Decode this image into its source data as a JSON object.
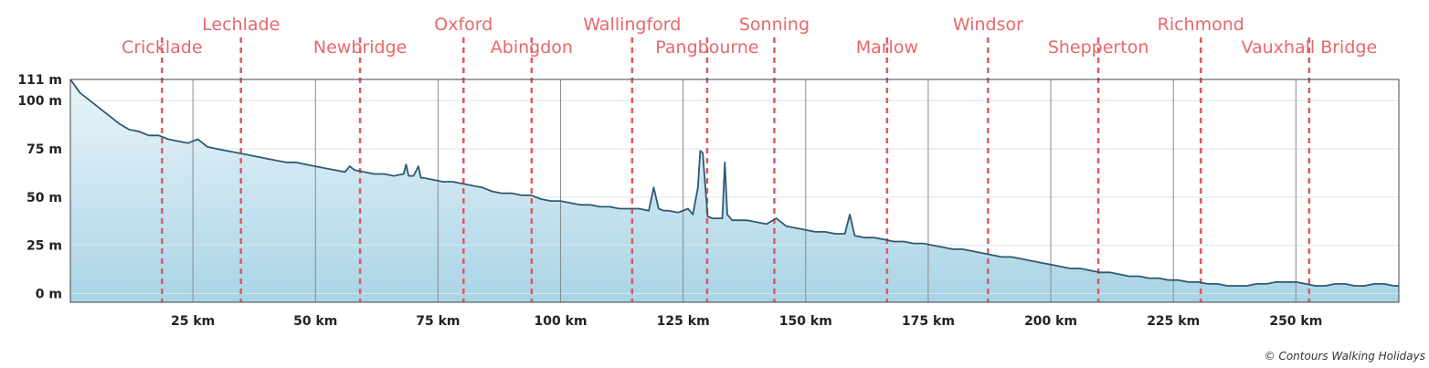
{
  "chart_data": {
    "type": "area",
    "title": "",
    "xlabel": "",
    "ylabel": "",
    "xlim": [
      0,
      271
    ],
    "ylim": [
      -4.5,
      111
    ],
    "grid": true,
    "x_ticks": [
      25,
      50,
      75,
      100,
      125,
      150,
      175,
      200,
      225,
      250
    ],
    "x_tick_labels": [
      "25 km",
      "50 km",
      "75 km",
      "100 km",
      "125 km",
      "150 km",
      "175 km",
      "200 km",
      "225 km",
      "250 km"
    ],
    "y_ticks": [
      0,
      25,
      50,
      75,
      100,
      111
    ],
    "y_tick_labels": [
      "0 m",
      "25 m",
      "50 m",
      "75 m",
      "100 m",
      "111 m"
    ],
    "towns": [
      {
        "name": "Cricklade",
        "km": 18.7,
        "row": 2
      },
      {
        "name": "Lechlade",
        "km": 34.8,
        "row": 1
      },
      {
        "name": "Newbridge",
        "km": 59.1,
        "row": 2
      },
      {
        "name": "Oxford",
        "km": 80.2,
        "row": 1
      },
      {
        "name": "Abingdon",
        "km": 94.1,
        "row": 2
      },
      {
        "name": "Wallingford",
        "km": 114.6,
        "row": 1
      },
      {
        "name": "Pangbourne",
        "km": 129.9,
        "row": 2
      },
      {
        "name": "Sonning",
        "km": 143.6,
        "row": 1
      },
      {
        "name": "Marlow",
        "km": 166.6,
        "row": 2
      },
      {
        "name": "Windsor",
        "km": 187.2,
        "row": 1
      },
      {
        "name": "Shepperton",
        "km": 209.7,
        "row": 2
      },
      {
        "name": "Richmond",
        "km": 230.6,
        "row": 1
      },
      {
        "name": "Vauxhall Bridge",
        "km": 252.7,
        "row": 2
      }
    ],
    "series": [
      {
        "x": [
          0,
          2,
          4,
          6,
          8,
          10,
          12,
          14,
          16,
          18,
          20,
          22,
          24,
          26,
          28,
          30,
          32,
          34,
          36,
          38,
          40,
          42,
          44,
          46,
          48,
          50,
          52,
          54,
          56,
          57,
          58,
          60,
          62,
          64,
          66,
          68,
          68.5,
          69,
          70,
          71,
          71.5,
          72,
          74,
          76,
          78,
          80,
          82,
          84,
          86,
          88,
          90,
          92,
          94,
          96,
          98,
          100,
          102,
          104,
          106,
          108,
          110,
          112,
          114,
          116,
          118,
          119,
          120,
          121,
          122,
          124,
          126,
          127,
          128,
          128.5,
          129,
          130,
          131,
          132,
          133,
          133.5,
          134,
          135,
          136,
          138,
          140,
          142,
          144,
          146,
          148,
          150,
          152,
          154,
          156,
          158,
          159,
          160,
          162,
          164,
          166,
          168,
          170,
          172,
          174,
          176,
          178,
          180,
          182,
          184,
          186,
          188,
          190,
          192,
          194,
          196,
          198,
          200,
          202,
          204,
          206,
          208,
          210,
          212,
          214,
          216,
          218,
          220,
          222,
          224,
          226,
          228,
          230,
          232,
          234,
          236,
          238,
          240,
          242,
          244,
          246,
          248,
          250,
          252,
          254,
          256,
          258,
          260,
          262,
          264,
          266,
          268,
          270,
          271
        ],
        "values": [
          111,
          104,
          100,
          96,
          92,
          88,
          85,
          84,
          82,
          82,
          80,
          79,
          78,
          80,
          76,
          75,
          74,
          73,
          72,
          71,
          70,
          69,
          68,
          68,
          67,
          66,
          65,
          64,
          63,
          66,
          64,
          63,
          62,
          62,
          61,
          62,
          67,
          61,
          61,
          66,
          60,
          60,
          59,
          58,
          58,
          57,
          56,
          55,
          53,
          52,
          52,
          51,
          51,
          49,
          48,
          48,
          47,
          46,
          46,
          45,
          45,
          44,
          44,
          44,
          43,
          55,
          44,
          43,
          43,
          42,
          44,
          41,
          55,
          74,
          73,
          40,
          39,
          39,
          39,
          68,
          41,
          38,
          38,
          38,
          37,
          36,
          39,
          35,
          34,
          33,
          32,
          32,
          31,
          31,
          41,
          30,
          29,
          29,
          28,
          27,
          27,
          26,
          26,
          25,
          24,
          23,
          23,
          22,
          21,
          20,
          19,
          19,
          18,
          17,
          16,
          15,
          14,
          13,
          13,
          12,
          11,
          11,
          10,
          9,
          9,
          8,
          8,
          7,
          7,
          6,
          6,
          5,
          5,
          4,
          4,
          4,
          5,
          5,
          6,
          6,
          6,
          5,
          4,
          4,
          5,
          5,
          4,
          4,
          5,
          5,
          4,
          4
        ]
      }
    ]
  },
  "credit": "© Contours Walking Holidays"
}
